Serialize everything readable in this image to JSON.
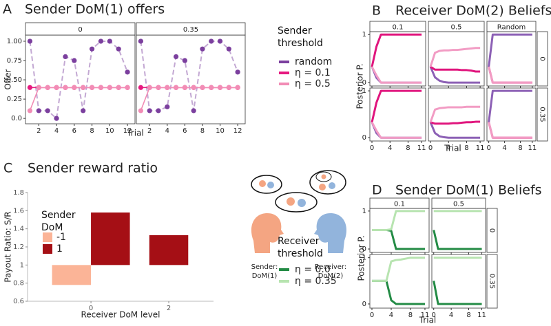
{
  "chart_data": [
    {
      "type": "line",
      "panel": "A",
      "title": "Sender DoM(1) offers",
      "xlabel": "Trial",
      "ylabel": "Offer",
      "legend_title": "Sender threshold",
      "markers": true,
      "series": [
        {
          "name": "random",
          "color": "#7b3f9e",
          "line_style": "dashed"
        },
        {
          "name": "η = 0.1",
          "color": "#e6197f"
        },
        {
          "name": "η = 0.5",
          "color": "#f28cb5"
        }
      ],
      "x": [
        1,
        2,
        3,
        4,
        5,
        6,
        7,
        8,
        9,
        10,
        11,
        12
      ],
      "xlim": [
        0.5,
        12.85
      ],
      "xticks": [
        2,
        4,
        6,
        8,
        10,
        12
      ],
      "ylim": [
        -0.07,
        1.08
      ],
      "yticks": [
        {
          "value": 0,
          "label": "0.0"
        },
        {
          "value": 0.25,
          "label": "0.25"
        },
        {
          "value": 0.5,
          "label": "0.50"
        },
        {
          "value": 0.75,
          "label": "0.75"
        },
        {
          "value": 1,
          "label": "1.00"
        }
      ],
      "col_facets": [
        "0",
        "0.35"
      ],
      "facets": [
        {
          "values": [
            [
              1.0,
              0.1,
              0.1,
              0.0,
              0.8,
              0.75,
              0.1,
              0.9,
              1.0,
              1.0,
              0.9,
              0.6
            ],
            [
              0.4,
              0.4,
              0.4,
              0.4,
              0.4,
              0.4,
              0.4,
              0.4,
              0.4,
              0.4,
              0.4,
              0.4
            ],
            [
              0.1,
              0.4,
              0.4,
              0.4,
              0.4,
              0.4,
              0.4,
              0.4,
              0.4,
              0.4,
              0.4,
              0.4
            ]
          ]
        },
        {
          "values": [
            [
              1.0,
              0.1,
              0.1,
              0.15,
              0.8,
              0.75,
              0.1,
              0.9,
              1.0,
              1.0,
              0.9,
              0.6
            ],
            [
              0.4,
              0.4,
              0.4,
              0.4,
              0.4,
              0.4,
              0.4,
              0.4,
              0.4,
              0.4,
              0.4,
              0.4
            ],
            [
              0.1,
              0.4,
              0.4,
              0.4,
              0.4,
              0.4,
              0.4,
              0.4,
              0.4,
              0.4,
              0.4,
              0.4
            ]
          ]
        }
      ]
    },
    {
      "type": "line",
      "panel": "B",
      "title": "Receiver DoM(2) Beliefs",
      "xlabel": "Trial",
      "ylabel": "Posterior P.",
      "colors": [
        "#8c60b5",
        "#e0157d",
        "#f29cc4"
      ],
      "x": [
        0,
        1,
        2,
        3,
        4,
        5,
        6,
        7,
        8,
        9,
        10,
        11
      ],
      "xlim": [
        -0.46,
        11.9
      ],
      "xticks": [
        0,
        4,
        8,
        11
      ],
      "ylim": [
        -0.07,
        1.06
      ],
      "yticks": [
        0,
        1
      ],
      "col_facets": [
        "0.1",
        "0.5",
        "Random"
      ],
      "row_facets": [
        "0",
        "0.35"
      ],
      "facets": [
        {
          "values": [
            [
              0.33,
              0.1,
              0,
              0,
              0,
              0,
              0,
              0,
              0,
              0,
              0,
              0
            ],
            [
              0.33,
              0.75,
              1,
              1,
              1,
              1,
              1,
              1,
              1,
              1,
              1,
              1
            ],
            [
              0.33,
              0.15,
              0,
              0,
              0,
              0,
              0,
              0,
              0,
              0,
              0,
              0
            ]
          ]
        },
        {
          "values": [
            [
              0.33,
              0.11,
              0.04,
              0.01,
              0,
              0,
              0,
              0,
              0,
              0,
              0,
              0
            ],
            [
              0.33,
              0.27,
              0.27,
              0.27,
              0.27,
              0.27,
              0.27,
              0.26,
              0.26,
              0.25,
              0.23,
              0.23
            ],
            [
              0.33,
              0.62,
              0.66,
              0.67,
              0.67,
              0.68,
              0.68,
              0.69,
              0.7,
              0.71,
              0.72,
              0.72
            ]
          ]
        },
        {
          "values": [
            [
              0.33,
              1,
              1,
              1,
              1,
              1,
              1,
              1,
              1,
              1,
              1,
              1
            ],
            [
              0.33,
              0,
              0,
              0,
              0,
              0,
              0,
              0,
              0,
              0,
              0,
              0
            ],
            [
              0.33,
              0,
              0,
              0,
              0,
              0,
              0,
              0,
              0,
              0,
              0,
              0
            ]
          ]
        },
        {
          "values": [
            [
              0.33,
              0.1,
              0,
              0,
              0,
              0,
              0,
              0,
              0,
              0,
              0,
              0
            ],
            [
              0.33,
              0.75,
              1,
              1,
              1,
              1,
              1,
              1,
              1,
              1,
              1,
              1
            ],
            [
              0.33,
              0.15,
              0,
              0,
              0,
              0,
              0,
              0,
              0,
              0,
              0,
              0
            ]
          ]
        },
        {
          "values": [
            [
              0.33,
              0.1,
              0.03,
              0.01,
              0,
              0,
              0,
              0,
              0,
              0,
              0,
              0
            ],
            [
              0.33,
              0.3,
              0.3,
              0.3,
              0.3,
              0.31,
              0.31,
              0.32,
              0.33,
              0.33,
              0.34,
              0.34
            ],
            [
              0.33,
              0.6,
              0.63,
              0.64,
              0.65,
              0.65,
              0.65,
              0.65,
              0.66,
              0.66,
              0.66,
              0.66
            ]
          ]
        },
        {
          "values": [
            [
              0.33,
              1,
              1,
              1,
              1,
              1,
              1,
              1,
              1,
              1,
              1,
              1
            ],
            [
              0.33,
              0,
              0,
              0,
              0,
              0,
              0,
              0,
              0,
              0,
              0,
              0
            ],
            [
              0.33,
              0,
              0,
              0,
              0,
              0,
              0,
              0,
              0,
              0,
              0,
              0
            ]
          ]
        }
      ]
    },
    {
      "type": "bar",
      "panel": "C",
      "title": "Sender reward ratio",
      "xlabel": "Receiver DoM level",
      "ylabel": "Payout Ratio: S/R",
      "legend_title": "Sender DoM",
      "bar_base": 1,
      "x": [
        0,
        2
      ],
      "xlim": [
        -1.63,
        3.15
      ],
      "xticks": [
        0,
        2
      ],
      "ylim": [
        0.6,
        1.8
      ],
      "yticks": [
        0.6,
        0.8,
        1,
        1.2,
        1.4,
        1.6,
        1.8
      ],
      "series": [
        {
          "name": "-1",
          "color": "#fbb497",
          "values": [
            0.78,
            null
          ]
        },
        {
          "name": "1",
          "color": "#a50f15",
          "values": [
            1.58,
            1.33
          ]
        }
      ]
    },
    {
      "type": "line",
      "panel": "D",
      "title": "Sender DoM(1) Beliefs",
      "xlabel": "Trial",
      "ylabel": "Posterior P.",
      "legend_title": "Receiver threshold",
      "series": [
        {
          "name": "η = 0.0",
          "color": "#238b45"
        },
        {
          "name": "η = 0.35",
          "color": "#b7e4b0"
        }
      ],
      "x": [
        0,
        1,
        2,
        3,
        4,
        5,
        6,
        7,
        8,
        9,
        10,
        11
      ],
      "xlim": [
        -0.43,
        11.86
      ],
      "xticks": [
        0,
        4,
        8,
        11
      ],
      "ylim": [
        -0.09,
        1.07
      ],
      "yticks": [
        0,
        1
      ],
      "col_facets": [
        "0.1",
        "0.5"
      ],
      "row_facets": [
        "0",
        "0.35"
      ],
      "facets": [
        {
          "values": [
            [
              0.5,
              0.5,
              0.5,
              0.5,
              0.48,
              0,
              0,
              0,
              0,
              0,
              0,
              0
            ],
            [
              0.5,
              0.5,
              0.5,
              0.5,
              0.52,
              1,
              1,
              1,
              1,
              1,
              1,
              1
            ]
          ]
        },
        {
          "values": [
            [
              0.5,
              0,
              0,
              0,
              0,
              0,
              0,
              0,
              0,
              0,
              0,
              0
            ],
            [
              1,
              1,
              1,
              1,
              1,
              1,
              1,
              1,
              1,
              1,
              1,
              1
            ]
          ]
        },
        {
          "values": [
            [
              0.5,
              0.5,
              0.5,
              0.5,
              0.08,
              0,
              0,
              0,
              0,
              0,
              0,
              0
            ],
            [
              0.5,
              0.5,
              0.5,
              0.5,
              0.92,
              0.95,
              0.96,
              0.98,
              1,
              1,
              1,
              1
            ]
          ]
        },
        {
          "values": [
            [
              0.5,
              0,
              0,
              0,
              0,
              0,
              0,
              0,
              0,
              0,
              0,
              0
            ],
            [
              1,
              1,
              1,
              1,
              1,
              1,
              1,
              1,
              1,
              1,
              1,
              1
            ]
          ]
        }
      ]
    }
  ],
  "diagram": {
    "sender": [
      "Sender:",
      "DoM(1)"
    ],
    "receiver": [
      "Receiver:",
      "DoM(2)"
    ]
  }
}
